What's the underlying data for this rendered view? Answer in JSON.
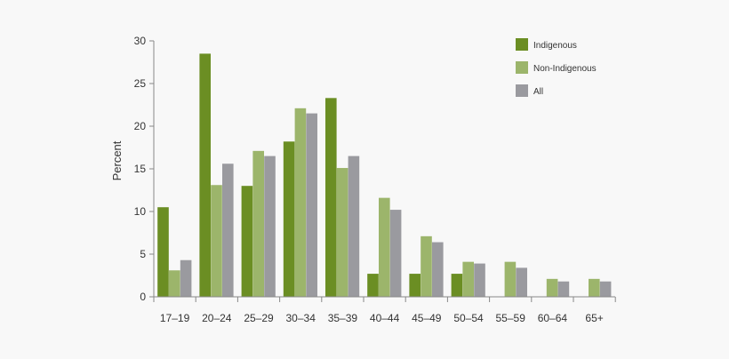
{
  "chart_data": {
    "type": "bar",
    "title": "",
    "xlabel": "",
    "ylabel": "Percent",
    "ylim": [
      0,
      30
    ],
    "yticks": [
      0,
      5,
      10,
      15,
      20,
      25,
      30
    ],
    "grid": false,
    "legend_position": "top-right",
    "categories": [
      "17–19",
      "20–24",
      "25–29",
      "30–34",
      "35–39",
      "40–44",
      "45–49",
      "50–54",
      "55–59",
      "60–64",
      "65+"
    ],
    "series": [
      {
        "name": "Indigenous",
        "color": "#6b8e23",
        "values": [
          10.5,
          28.5,
          13.0,
          18.2,
          23.3,
          2.7,
          2.7,
          2.7,
          0.0,
          0.0,
          0.0
        ]
      },
      {
        "name": "Non-Indigenous",
        "color": "#9cb56b",
        "values": [
          3.1,
          13.1,
          17.1,
          22.1,
          15.1,
          11.6,
          7.1,
          4.1,
          4.1,
          2.1,
          2.1
        ]
      },
      {
        "name": "All",
        "color": "#9a9a9f",
        "values": [
          4.3,
          15.6,
          16.5,
          21.5,
          16.5,
          10.2,
          6.4,
          3.9,
          3.4,
          1.8,
          1.8
        ]
      }
    ]
  }
}
